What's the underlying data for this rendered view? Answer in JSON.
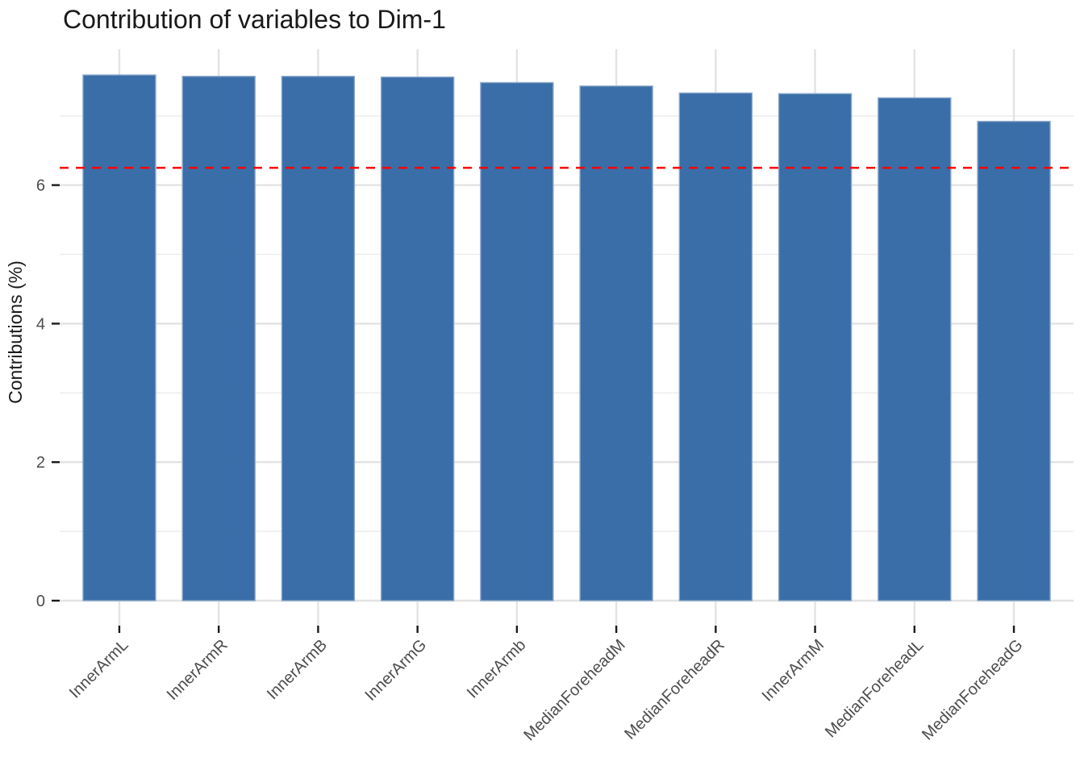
{
  "chart_data": {
    "type": "bar",
    "title": "Contribution of variables to Dim-1",
    "ylabel": "Contributions (%)",
    "xlabel": "",
    "categories": [
      "InnerArmL",
      "InnerArmR",
      "InnerArmB",
      "InnerArmG",
      "InnerArmb",
      "MedianForeheadM",
      "MedianForeheadR",
      "InnerArmM",
      "MedianForeheadL",
      "MedianForeheadG"
    ],
    "values": [
      7.59,
      7.57,
      7.57,
      7.56,
      7.48,
      7.43,
      7.33,
      7.32,
      7.26,
      6.92
    ],
    "yticks": [
      0,
      2,
      4,
      6
    ],
    "minor_yticks": [
      1,
      3,
      5,
      7
    ],
    "ylim": [
      -0.36,
      7.97
    ],
    "x_tick_rotation": 45,
    "grid": true,
    "legend": "none",
    "reference_line": {
      "value": 6.25,
      "style": "dashed",
      "color": "#ff0000"
    },
    "bar_color": "#3a6ea8",
    "bar_border_color": "#88a6c9",
    "major_grid_color": "#e3e3e3",
    "minor_grid_color": "#ededed",
    "tick_color": "#1a1a1a",
    "axis_text_color": "#4d4d4d",
    "title_color": "#1a1a1a"
  }
}
